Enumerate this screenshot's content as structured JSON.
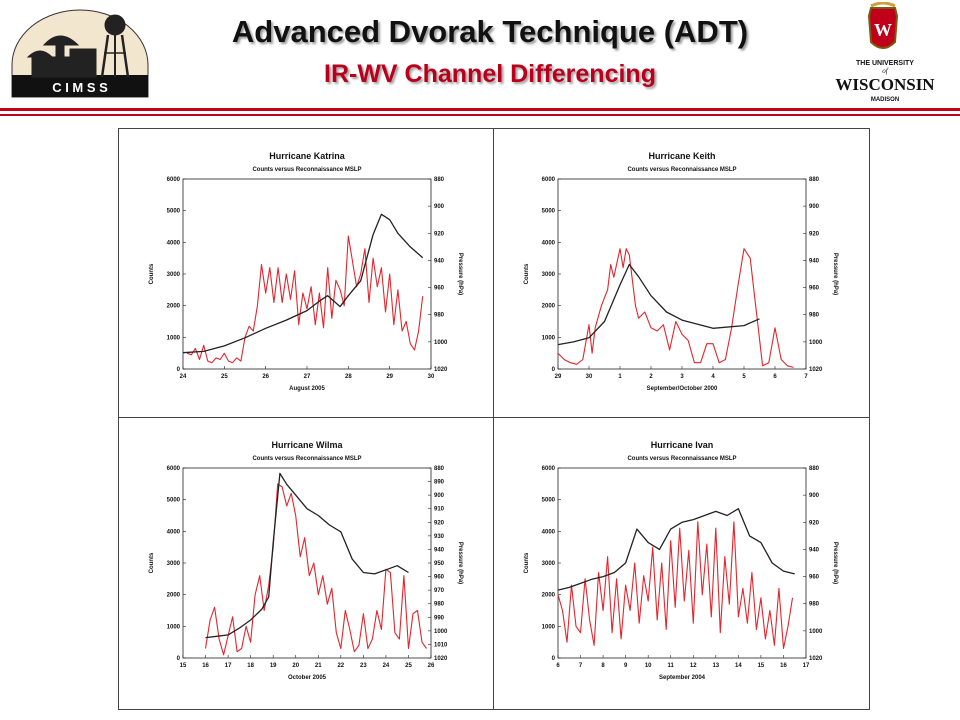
{
  "header": {
    "title": "Advanced Dvorak Technique (ADT)",
    "subtitle": "IR-WV Channel Differencing",
    "left_logo_text": "C I M S S",
    "right_logo_line1": "THE UNIVERSITY",
    "right_logo_of": "of",
    "right_logo_name": "WISCONSIN",
    "right_logo_line3": "MADISON",
    "accent_color": "#c0001a"
  },
  "chart_data": [
    {
      "type": "line",
      "title": "Hurricane Katrina",
      "subtitle": "Counts versus Reconnaissance MSLP",
      "xlabel": "August 2005",
      "ylabel": "Counts",
      "y2label": "Pressure (hPa)",
      "xlim": [
        24,
        30
      ],
      "xticks": [
        "24",
        "25",
        "26",
        "27",
        "28",
        "29",
        "30"
      ],
      "ylim": [
        0,
        6000
      ],
      "yticks": [
        "0",
        "1000",
        "2000",
        "3000",
        "4000",
        "5000",
        "6000"
      ],
      "y2lim": [
        880,
        1020
      ],
      "y2ticks": [
        "880",
        "900",
        "920",
        "940",
        "960",
        "980",
        "1000",
        "1020"
      ],
      "series": [
        {
          "role": "counts",
          "axis": "left",
          "color": "#e0262e",
          "x": [
            24.1,
            24.2,
            24.3,
            24.4,
            24.5,
            24.6,
            24.7,
            24.8,
            24.9,
            25.0,
            25.1,
            25.2,
            25.3,
            25.4,
            25.5,
            25.6,
            25.7,
            25.8,
            25.9,
            26.0,
            26.1,
            26.2,
            26.3,
            26.4,
            26.5,
            26.6,
            26.7,
            26.8,
            26.9,
            27.0,
            27.1,
            27.2,
            27.3,
            27.4,
            27.5,
            27.6,
            27.7,
            27.8,
            27.9,
            28.0,
            28.1,
            28.2,
            28.3,
            28.4,
            28.5,
            28.6,
            28.7,
            28.8,
            28.9,
            29.0,
            29.1,
            29.2,
            29.3,
            29.4,
            29.5,
            29.6,
            29.7,
            29.8
          ],
          "y": [
            500,
            450,
            650,
            300,
            750,
            250,
            200,
            350,
            300,
            500,
            250,
            200,
            350,
            250,
            1000,
            1350,
            1200,
            2000,
            3300,
            2400,
            3200,
            2100,
            3200,
            2100,
            3000,
            2200,
            3100,
            1400,
            2400,
            1900,
            2600,
            1400,
            2400,
            1300,
            3200,
            1600,
            2800,
            2500,
            2000,
            4200,
            3400,
            2600,
            3000,
            3800,
            2100,
            3500,
            2600,
            3200,
            1800,
            3000,
            1400,
            2500,
            1200,
            1500,
            800,
            600,
            1200,
            2300
          ]
        },
        {
          "role": "mslp",
          "axis": "right",
          "color": "#222222",
          "x": [
            24.0,
            24.5,
            25.0,
            25.5,
            26.0,
            26.5,
            27.0,
            27.3,
            27.5,
            27.8,
            28.0,
            28.3,
            28.6,
            28.8,
            29.0,
            29.2,
            29.5,
            29.8
          ],
          "y": [
            1008,
            1007,
            1003,
            997,
            990,
            984,
            977,
            970,
            966,
            974,
            966,
            955,
            921,
            906,
            910,
            920,
            930,
            938
          ]
        }
      ]
    },
    {
      "type": "line",
      "title": "Hurricane Keith",
      "subtitle": "Counts versus Reconnaissance MSLP",
      "xlabel": "September/October 2000",
      "ylabel": "Counts",
      "y2label": "Pressure (hPa)",
      "xlim": [
        29,
        37
      ],
      "xticks": [
        "29",
        "30",
        "1",
        "2",
        "3",
        "4",
        "5",
        "6",
        "7"
      ],
      "ylim": [
        0,
        6000
      ],
      "yticks": [
        "0",
        "1000",
        "2000",
        "3000",
        "4000",
        "5000",
        "6000"
      ],
      "y2lim": [
        880,
        1020
      ],
      "y2ticks": [
        "880",
        "900",
        "920",
        "940",
        "960",
        "980",
        "1000",
        "1020"
      ],
      "series": [
        {
          "role": "counts",
          "axis": "left",
          "color": "#e0262e",
          "x": [
            29.0,
            29.2,
            29.4,
            29.6,
            29.8,
            30.0,
            30.1,
            30.2,
            30.4,
            30.6,
            30.7,
            30.8,
            31.0,
            31.1,
            31.2,
            31.3,
            31.4,
            31.5,
            31.6,
            31.8,
            32.0,
            32.2,
            32.4,
            32.6,
            32.8,
            33.0,
            33.2,
            33.4,
            33.6,
            33.8,
            34.0,
            34.2,
            34.4,
            34.6,
            34.8,
            35.0,
            35.2,
            35.4,
            35.6,
            35.8,
            36.0,
            36.2,
            36.4,
            36.6
          ],
          "y": [
            500,
            300,
            200,
            150,
            300,
            1400,
            500,
            1300,
            2000,
            2500,
            3300,
            2900,
            3800,
            3200,
            3800,
            3600,
            2800,
            2000,
            1600,
            1800,
            1300,
            1200,
            1400,
            600,
            1500,
            1100,
            900,
            200,
            200,
            800,
            800,
            200,
            300,
            1300,
            2600,
            3800,
            3500,
            1800,
            100,
            200,
            1300,
            300,
            100,
            50
          ]
        },
        {
          "role": "mslp",
          "axis": "right",
          "color": "#222222",
          "x": [
            29.0,
            29.5,
            30.0,
            30.5,
            31.0,
            31.3,
            31.6,
            32.0,
            32.5,
            33.0,
            34.0,
            35.0,
            35.5
          ],
          "y": [
            1002,
            1000,
            997,
            985,
            958,
            943,
            952,
            966,
            978,
            984,
            990,
            988,
            983
          ]
        }
      ]
    },
    {
      "type": "line",
      "title": "Hurricane Wilma",
      "subtitle": "Counts versus Reconnaissance MSLP",
      "xlabel": "October 2005",
      "ylabel": "Counts",
      "y2label": "Pressure (hPa)",
      "xlim": [
        15,
        26
      ],
      "xticks": [
        "15",
        "16",
        "17",
        "18",
        "19",
        "20",
        "21",
        "22",
        "23",
        "24",
        "25",
        "26"
      ],
      "ylim": [
        0,
        6000
      ],
      "yticks": [
        "0",
        "1000",
        "2000",
        "3000",
        "4000",
        "5000",
        "6000"
      ],
      "y2lim": [
        880,
        1020
      ],
      "y2ticks": [
        "880",
        "890",
        "900",
        "910",
        "920",
        "930",
        "940",
        "950",
        "960",
        "970",
        "980",
        "990",
        "1000",
        "1010",
        "1020"
      ],
      "series": [
        {
          "role": "counts",
          "axis": "left",
          "color": "#e0262e",
          "x": [
            16.0,
            16.2,
            16.4,
            16.6,
            16.8,
            17.0,
            17.2,
            17.4,
            17.6,
            17.8,
            18.0,
            18.2,
            18.4,
            18.6,
            18.8,
            19.0,
            19.2,
            19.4,
            19.6,
            19.8,
            20.0,
            20.2,
            20.4,
            20.6,
            20.8,
            21.0,
            21.2,
            21.4,
            21.6,
            21.8,
            22.0,
            22.2,
            22.4,
            22.6,
            22.8,
            23.0,
            23.2,
            23.4,
            23.6,
            23.8,
            24.0,
            24.2,
            24.4,
            24.6,
            24.8,
            25.0,
            25.2,
            25.4,
            25.6,
            25.8
          ],
          "y": [
            300,
            1200,
            1600,
            600,
            100,
            700,
            1300,
            200,
            300,
            1000,
            500,
            2000,
            2600,
            1500,
            2300,
            3500,
            5500,
            5400,
            4800,
            5200,
            4500,
            3200,
            3800,
            2600,
            3000,
            2000,
            2600,
            1700,
            2200,
            800,
            300,
            1500,
            900,
            200,
            400,
            1400,
            300,
            600,
            1500,
            900,
            2800,
            2700,
            800,
            600,
            2600,
            300,
            1400,
            1500,
            500,
            300
          ]
        },
        {
          "role": "mslp",
          "axis": "right",
          "color": "#222222",
          "x": [
            16.0,
            16.5,
            17.0,
            17.5,
            18.0,
            18.5,
            18.8,
            19.0,
            19.3,
            19.6,
            20.0,
            20.5,
            21.0,
            21.5,
            22.0,
            22.5,
            23.0,
            23.5,
            24.0,
            24.5,
            25.0
          ],
          "y": [
            1005,
            1004,
            1003,
            998,
            992,
            984,
            975,
            935,
            884,
            892,
            900,
            910,
            915,
            922,
            927,
            947,
            957,
            958,
            955,
            952,
            957
          ]
        }
      ]
    },
    {
      "type": "line",
      "title": "Hurricane Ivan",
      "subtitle": "Counts versus Reconnaissance MSLP",
      "xlabel": "September 2004",
      "ylabel": "Counts",
      "y2label": "Pressure (hPa)",
      "xlim": [
        6,
        17
      ],
      "xticks": [
        "6",
        "7",
        "8",
        "9",
        "10",
        "11",
        "12",
        "13",
        "14",
        "15",
        "16",
        "17"
      ],
      "ylim": [
        0,
        6000
      ],
      "yticks": [
        "0",
        "1000",
        "2000",
        "3000",
        "4000",
        "5000",
        "6000"
      ],
      "y2lim": [
        880,
        1020
      ],
      "y2ticks": [
        "880",
        "900",
        "920",
        "940",
        "960",
        "980",
        "1000",
        "1020"
      ],
      "series": [
        {
          "role": "counts",
          "axis": "left",
          "color": "#e0262e",
          "x": [
            6.0,
            6.2,
            6.4,
            6.6,
            6.8,
            7.0,
            7.2,
            7.4,
            7.6,
            7.8,
            8.0,
            8.2,
            8.4,
            8.6,
            8.8,
            9.0,
            9.2,
            9.4,
            9.6,
            9.8,
            10.0,
            10.2,
            10.4,
            10.6,
            10.8,
            11.0,
            11.2,
            11.4,
            11.6,
            11.8,
            12.0,
            12.2,
            12.4,
            12.6,
            12.8,
            13.0,
            13.2,
            13.4,
            13.6,
            13.8,
            14.0,
            14.2,
            14.4,
            14.6,
            14.8,
            15.0,
            15.2,
            15.4,
            15.6,
            15.8,
            16.0,
            16.2,
            16.4
          ],
          "y": [
            2000,
            1500,
            500,
            2300,
            1000,
            800,
            2500,
            1200,
            400,
            2700,
            1500,
            3200,
            800,
            2500,
            600,
            2300,
            1500,
            3000,
            1100,
            2600,
            1800,
            3500,
            1200,
            3000,
            900,
            3700,
            1600,
            4100,
            1800,
            3400,
            1100,
            4300,
            2000,
            3600,
            1300,
            4100,
            800,
            3200,
            1700,
            4300,
            1300,
            2200,
            1100,
            2700,
            900,
            1900,
            600,
            1500,
            400,
            2200,
            300,
            1000,
            1900
          ]
        },
        {
          "role": "mslp",
          "axis": "right",
          "color": "#222222",
          "x": [
            6.0,
            6.5,
            7.0,
            7.5,
            8.0,
            8.5,
            9.0,
            9.5,
            10.0,
            10.5,
            11.0,
            11.5,
            12.0,
            12.5,
            13.0,
            13.5,
            14.0,
            14.5,
            15.0,
            15.5,
            16.0,
            16.5
          ],
          "y": [
            970,
            968,
            965,
            962,
            960,
            957,
            950,
            925,
            935,
            940,
            925,
            920,
            918,
            915,
            912,
            915,
            910,
            930,
            935,
            950,
            956,
            958
          ]
        }
      ]
    }
  ]
}
